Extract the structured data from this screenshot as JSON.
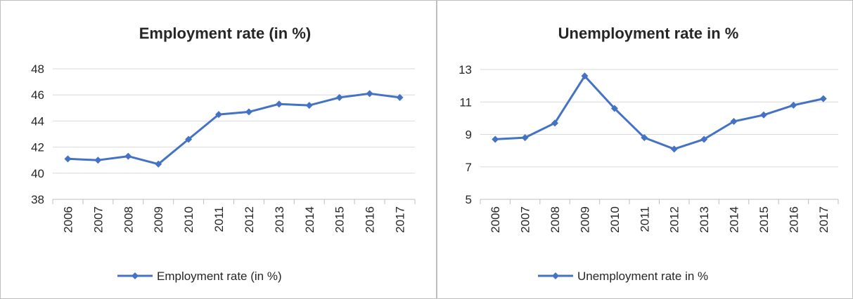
{
  "chart_data": [
    {
      "type": "line",
      "title": "Employment rate (in %)",
      "xlabel": "",
      "ylabel": "",
      "categories": [
        "2006",
        "2007",
        "2008",
        "2009",
        "2010",
        "2011",
        "2012",
        "2013",
        "2014",
        "2015",
        "2016",
        "2017"
      ],
      "series": [
        {
          "name": "Employment rate (in %)",
          "values": [
            41.1,
            41.0,
            41.3,
            40.7,
            42.6,
            44.5,
            44.7,
            45.3,
            45.2,
            45.8,
            46.1,
            45.8
          ],
          "color": "#4472c4"
        }
      ],
      "ylim": [
        38,
        48
      ],
      "yticks": [
        "38",
        "40",
        "42",
        "44",
        "46",
        "48"
      ],
      "grid": true,
      "legend": "bottom"
    },
    {
      "type": "line",
      "title": "Unemployment rate in %",
      "xlabel": "",
      "ylabel": "",
      "categories": [
        "2006",
        "2007",
        "2008",
        "2009",
        "2010",
        "2011",
        "2012",
        "2013",
        "2014",
        "2015",
        "2016",
        "2017"
      ],
      "series": [
        {
          "name": "Unemployment rate in %",
          "values": [
            8.7,
            8.8,
            9.7,
            12.6,
            10.6,
            8.8,
            8.1,
            8.7,
            9.8,
            10.2,
            10.8,
            11.2
          ],
          "color": "#4472c4"
        }
      ],
      "ylim": [
        5,
        13
      ],
      "yticks": [
        "5",
        "7",
        "9",
        "11",
        "13"
      ],
      "grid": true,
      "legend": "bottom"
    }
  ]
}
